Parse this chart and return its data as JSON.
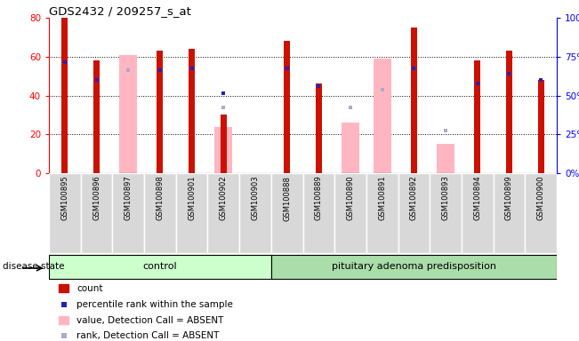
{
  "title": "GDS2432 / 209257_s_at",
  "samples": [
    "GSM100895",
    "GSM100896",
    "GSM100897",
    "GSM100898",
    "GSM100901",
    "GSM100902",
    "GSM100903",
    "GSM100888",
    "GSM100889",
    "GSM100890",
    "GSM100891",
    "GSM100892",
    "GSM100893",
    "GSM100894",
    "GSM100899",
    "GSM100900"
  ],
  "red_bars": [
    80,
    58,
    0,
    63,
    64,
    30,
    0,
    68,
    46,
    0,
    0,
    75,
    0,
    58,
    63,
    48
  ],
  "pink_bars": [
    0,
    0,
    61,
    0,
    0,
    24,
    0,
    0,
    0,
    26,
    59,
    0,
    15,
    0,
    0,
    0
  ],
  "blue_markers": [
    57,
    48,
    0,
    53,
    54,
    41,
    0,
    54,
    45,
    0,
    0,
    54,
    0,
    46,
    51,
    48
  ],
  "lb_markers": [
    0,
    0,
    53,
    0,
    0,
    34,
    0,
    0,
    0,
    34,
    43,
    0,
    22,
    0,
    0,
    0
  ],
  "n_control": 7,
  "n_disease": 9,
  "ylim_left": [
    0,
    80
  ],
  "ylim_right": [
    0,
    100
  ],
  "yticks_left": [
    0,
    20,
    40,
    60,
    80
  ],
  "yticks_right": [
    0,
    25,
    50,
    75,
    100
  ],
  "ytick_labels_right": [
    "0%",
    "25%",
    "50%",
    "75%",
    "100%"
  ],
  "grid_yticks": [
    20,
    40,
    60
  ],
  "red_color": "#CC1100",
  "pink_color": "#FFB6C1",
  "blue_color": "#2222BB",
  "lb_color": "#AAAACC",
  "ctrl_color": "#CCFFCC",
  "dis_color": "#AADDAA",
  "control_label": "control",
  "disease_label": "pituitary adenoma predisposition",
  "disease_state_label": "disease state",
  "legend_labels": [
    "count",
    "percentile rank within the sample",
    "value, Detection Call = ABSENT",
    "rank, Detection Call = ABSENT"
  ]
}
